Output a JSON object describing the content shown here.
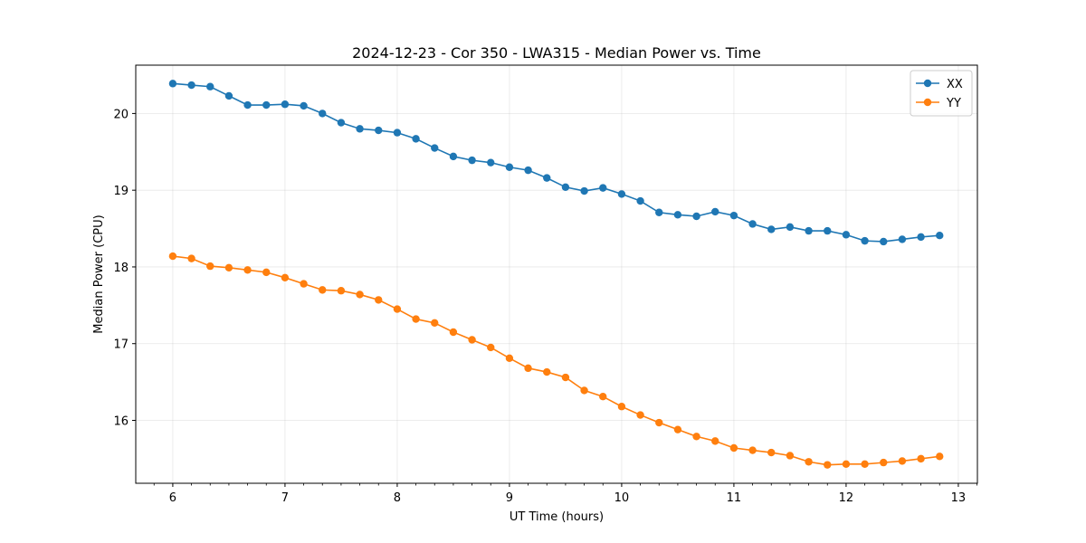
{
  "chart_data": {
    "type": "line",
    "title": "2024-12-23 - Cor 350 - LWA315 - Median Power vs. Time",
    "xlabel": "UT Time (hours)",
    "ylabel": "Median Power (CPU)",
    "xlim": [
      5.67,
      13.17
    ],
    "ylim": [
      15.18,
      20.63
    ],
    "xticks": [
      6,
      7,
      8,
      9,
      10,
      11,
      12,
      13
    ],
    "yticks": [
      16,
      17,
      18,
      19,
      20
    ],
    "grid": true,
    "legend_position": "top-right",
    "x": [
      6.0,
      6.1667,
      6.3333,
      6.5,
      6.6667,
      6.8333,
      7.0,
      7.1667,
      7.3333,
      7.5,
      7.6667,
      7.8333,
      8.0,
      8.1667,
      8.3333,
      8.5,
      8.6667,
      8.8333,
      9.0,
      9.1667,
      9.3333,
      9.5,
      9.6667,
      9.8333,
      10.0,
      10.1667,
      10.3333,
      10.5,
      10.6667,
      10.8333,
      11.0,
      11.1667,
      11.3333,
      11.5,
      11.6667,
      11.8333,
      12.0,
      12.1667,
      12.3333,
      12.5,
      12.6667,
      12.8333
    ],
    "series": [
      {
        "name": "XX",
        "color": "#1f77b4",
        "values": [
          20.39,
          20.37,
          20.35,
          20.23,
          20.11,
          20.11,
          20.12,
          20.1,
          20.0,
          19.88,
          19.8,
          19.78,
          19.75,
          19.67,
          19.55,
          19.44,
          19.39,
          19.36,
          19.3,
          19.26,
          19.16,
          19.04,
          18.99,
          19.03,
          18.95,
          18.86,
          18.71,
          18.68,
          18.66,
          18.72,
          18.67,
          18.56,
          18.49,
          18.52,
          18.47,
          18.47,
          18.42,
          18.34,
          18.33,
          18.36,
          18.39,
          18.41
        ]
      },
      {
        "name": "YY",
        "color": "#ff7f0e",
        "values": [
          18.14,
          18.11,
          18.01,
          17.99,
          17.96,
          17.93,
          17.86,
          17.78,
          17.7,
          17.69,
          17.64,
          17.57,
          17.45,
          17.32,
          17.27,
          17.15,
          17.05,
          16.95,
          16.81,
          16.68,
          16.63,
          16.56,
          16.39,
          16.31,
          16.18,
          16.07,
          15.97,
          15.88,
          15.79,
          15.73,
          15.64,
          15.61,
          15.58,
          15.54,
          15.46,
          15.42,
          15.43,
          15.43,
          15.45,
          15.47,
          15.5,
          15.53
        ]
      }
    ]
  }
}
